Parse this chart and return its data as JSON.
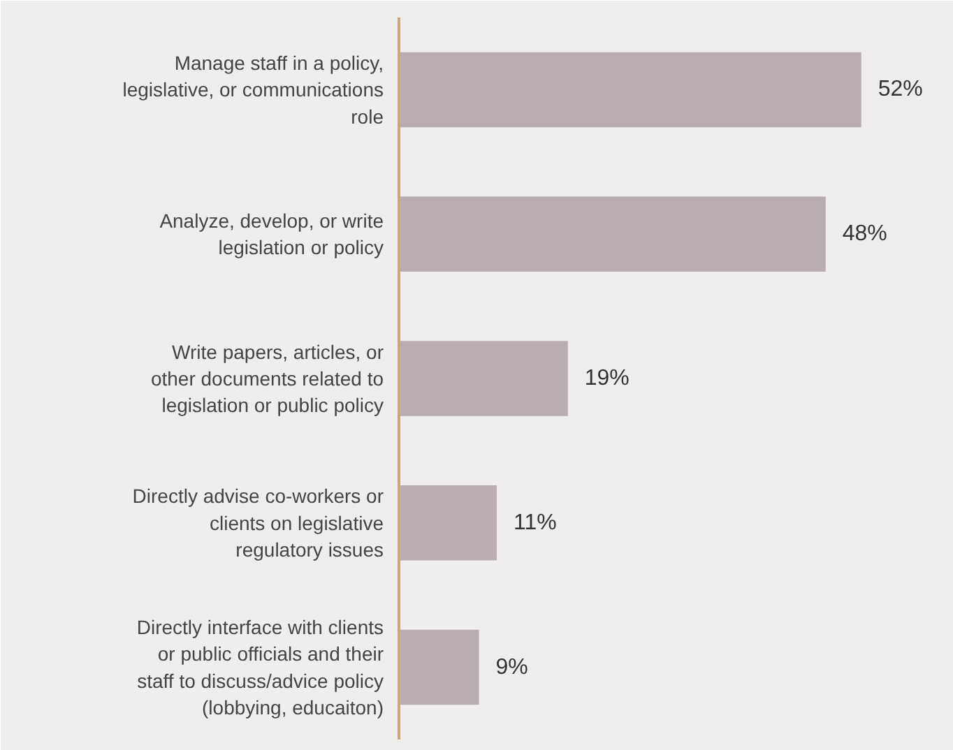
{
  "chart_data": {
    "type": "bar",
    "orientation": "horizontal",
    "categories": [
      "Manage staff in a policy, legislative, or communications role",
      "Analyze, develop, or write legislation or policy",
      "Write papers, articles, or other documents related to legislation or public policy",
      "Directly advise co-workers or clients on legislative regulatory issues",
      "Directly interface with clients or public officials and their staff to discuss/advice policy (lobbying, educaiton)"
    ],
    "values": [
      52,
      48,
      19,
      11,
      9
    ],
    "value_labels": [
      "52%",
      "48%",
      "19%",
      "11%",
      "9%"
    ],
    "color": "#b9adb0",
    "grid": false
  }
}
